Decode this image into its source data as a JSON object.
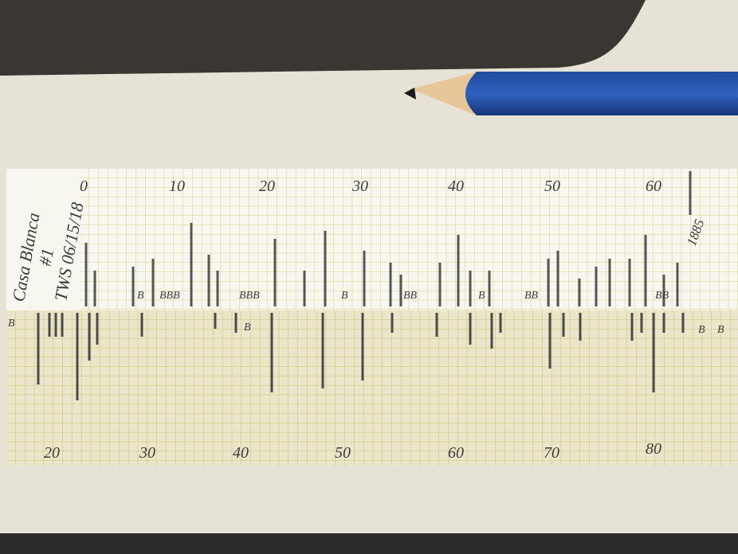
{
  "label": {
    "site": "Casa Blanca",
    "number": "#1",
    "initials": "TWS 06/15/18"
  },
  "top_strip": {
    "numbers": [
      "0",
      "10",
      "20",
      "30",
      "40",
      "50",
      "60"
    ],
    "end_year": "1885",
    "b_marks": [
      "B",
      "BBB",
      "BBB",
      "B",
      "BB",
      "B",
      "BB",
      "BB"
    ]
  },
  "bottom_strip": {
    "numbers": [
      "20",
      "30",
      "40",
      "50",
      "60",
      "70",
      "80"
    ],
    "b_marks": [
      "B",
      "B",
      "B",
      "B"
    ]
  }
}
